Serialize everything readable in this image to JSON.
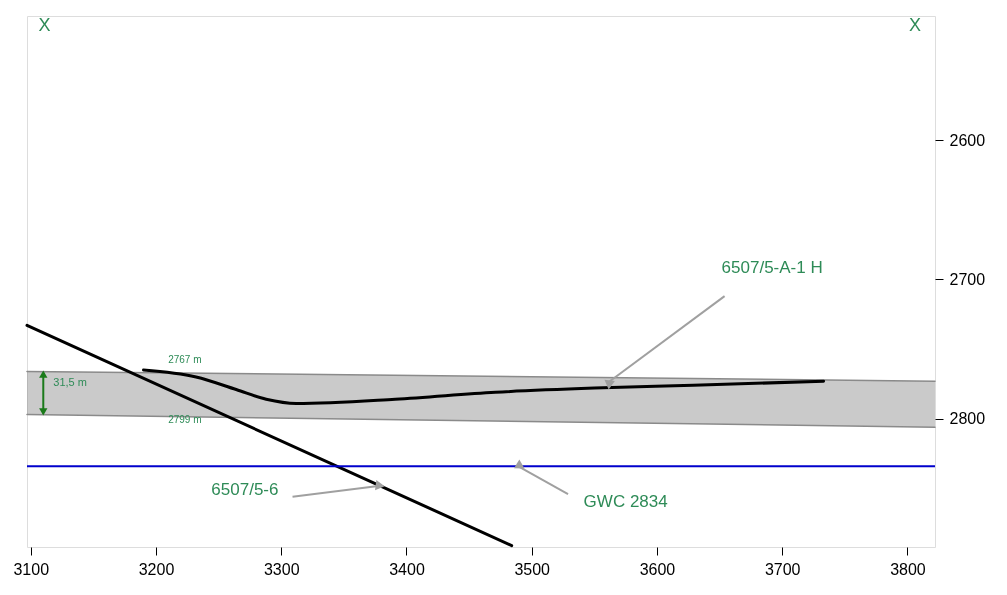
{
  "chart_data": {
    "type": "line",
    "xlim": [
      3097,
      3822
    ],
    "xticks": [
      3100,
      3200,
      3300,
      3400,
      3500,
      3600,
      3700,
      3800
    ],
    "ylim": [
      2892,
      2511
    ],
    "yticks": [
      2600,
      2700,
      2800
    ],
    "grid": false,
    "marker": "none",
    "line_style": "solid",
    "series": [
      {
        "color": "#8a8a8a",
        "x": [
          3097,
          3822
        ],
        "values": [
          2766,
          2773
        ],
        "lower": [
          2766,
          2773
        ],
        "upper": [
          2797,
          2806
        ]
      },
      {
        "color": "#8a8a8a",
        "x": [
          3097,
          3822
        ],
        "values": [
          2797,
          2806
        ]
      },
      {
        "color": "#000000",
        "x": [
          3097,
          3484
        ],
        "values": [
          2733,
          2891
        ]
      },
      {
        "color": "#000000",
        "x": [
          3190,
          3232,
          3264,
          3288,
          3312,
          3391,
          3471,
          3550,
          3629,
          3733
        ],
        "values": [
          2765,
          2770,
          2779,
          2786,
          2789,
          2786,
          2781,
          2778,
          2776,
          2773
        ]
      }
    ],
    "ref_lines": [
      {
        "axis": "y",
        "value": 2834,
        "color": "#0000cc"
      }
    ],
    "annotations": [
      "X",
      "X",
      {
        "text": "6507/5-A-1 H",
        "x": 3561,
        "y": 2774
      },
      {
        "text": "6507/5-6",
        "x": 3379,
        "y": 2848
      },
      {
        "text": "GWC 2834",
        "x": 3489,
        "y": 2834
      },
      "2767 m",
      "31,5 m",
      "2799 m"
    ]
  }
}
